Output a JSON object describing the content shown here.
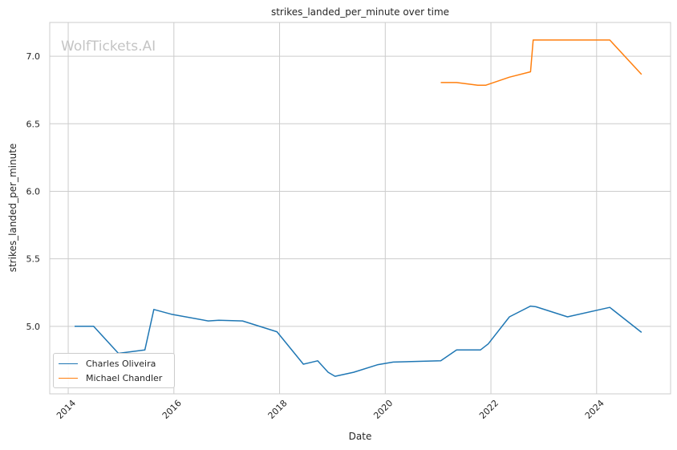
{
  "chart_data": {
    "type": "line",
    "title": "strikes_landed_per_minute over time",
    "xlabel": "Date",
    "ylabel": "strikes_landed_per_minute",
    "watermark": "WolfTickets.AI",
    "xlim": [
      2013.65,
      2025.4
    ],
    "ylim": [
      4.5,
      7.25
    ],
    "x_ticks": [
      "2014",
      "2016",
      "2018",
      "2020",
      "2022",
      "2024"
    ],
    "y_ticks": [
      "5.0",
      "5.5",
      "6.0",
      "6.5",
      "7.0"
    ],
    "grid": true,
    "legend_position": "lower-left",
    "series": [
      {
        "name": "Charles Oliveira",
        "color": "#1f77b4",
        "points": [
          [
            2014.12,
            5.0
          ],
          [
            2014.48,
            5.0
          ],
          [
            2014.95,
            4.8
          ],
          [
            2015.45,
            4.825
          ],
          [
            2015.62,
            5.125
          ],
          [
            2015.95,
            5.09
          ],
          [
            2016.65,
            5.04
          ],
          [
            2016.85,
            5.045
          ],
          [
            2017.3,
            5.04
          ],
          [
            2017.95,
            4.96
          ],
          [
            2018.45,
            4.72
          ],
          [
            2018.72,
            4.745
          ],
          [
            2018.92,
            4.66
          ],
          [
            2019.05,
            4.63
          ],
          [
            2019.4,
            4.66
          ],
          [
            2019.85,
            4.715
          ],
          [
            2020.15,
            4.735
          ],
          [
            2021.05,
            4.745
          ],
          [
            2021.35,
            4.825
          ],
          [
            2021.8,
            4.825
          ],
          [
            2021.95,
            4.87
          ],
          [
            2022.35,
            5.07
          ],
          [
            2022.75,
            5.15
          ],
          [
            2022.85,
            5.145
          ],
          [
            2023.45,
            5.07
          ],
          [
            2024.25,
            5.14
          ],
          [
            2024.85,
            4.955
          ]
        ]
      },
      {
        "name": "Michael Chandler",
        "color": "#ff7f0e",
        "points": [
          [
            2021.05,
            6.805
          ],
          [
            2021.35,
            6.805
          ],
          [
            2021.75,
            6.785
          ],
          [
            2021.9,
            6.785
          ],
          [
            2022.35,
            6.845
          ],
          [
            2022.75,
            6.885
          ],
          [
            2022.8,
            7.12
          ],
          [
            2024.25,
            7.12
          ],
          [
            2024.85,
            6.865
          ]
        ]
      }
    ]
  }
}
